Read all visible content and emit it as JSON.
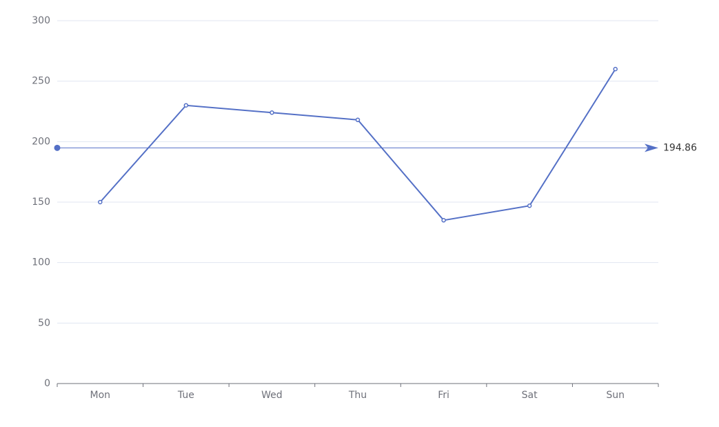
{
  "chart_data": {
    "type": "line",
    "categories": [
      "Mon",
      "Tue",
      "Wed",
      "Thu",
      "Fri",
      "Sat",
      "Sun"
    ],
    "series": [
      {
        "name": "Series",
        "color": "#5470c6",
        "values": [
          150,
          230,
          224,
          218,
          135,
          147,
          260
        ]
      }
    ],
    "ylim": [
      0,
      300
    ],
    "yticks": [
      0,
      50,
      100,
      150,
      200,
      250,
      300
    ],
    "grid": true,
    "mark_line": {
      "value": 194.86
    }
  }
}
